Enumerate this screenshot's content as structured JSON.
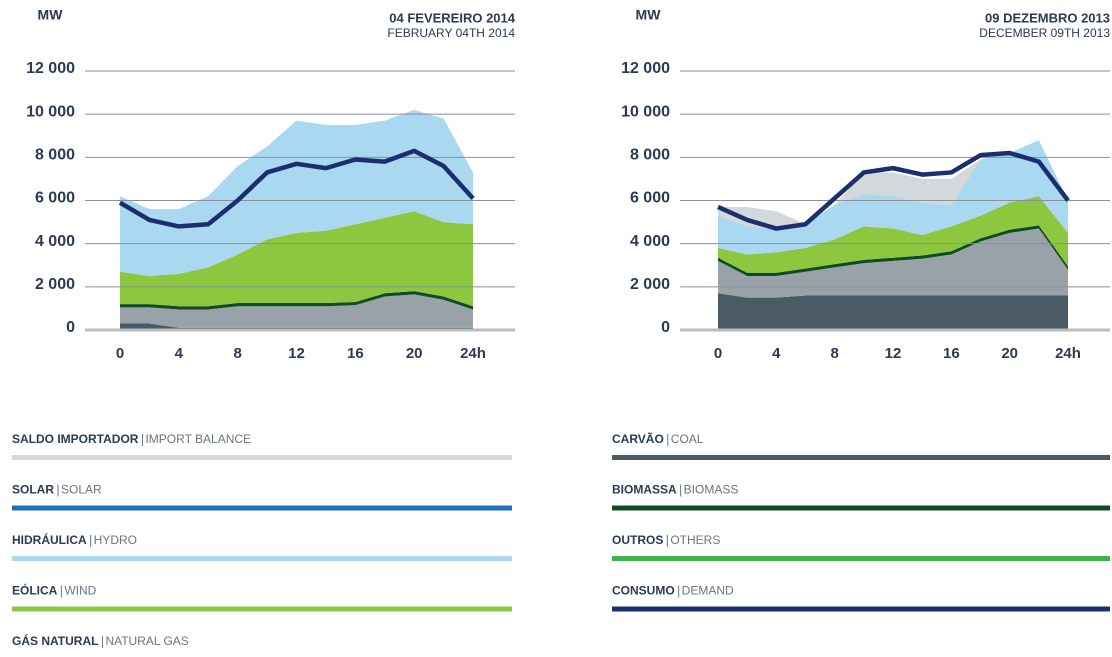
{
  "chart_data": [
    {
      "type": "stacked_area",
      "title": "MW",
      "subtitle": "04 FEVEREIRO 2014",
      "subtitle2": "FEBRUARY 04TH 2014",
      "x": [
        0,
        2,
        4,
        6,
        8,
        10,
        12,
        14,
        16,
        18,
        20,
        22,
        24
      ],
      "xlim": [
        0,
        24
      ],
      "xticks": [
        0,
        4,
        8,
        12,
        16,
        20,
        {
          "value": 24,
          "label": "24h"
        }
      ],
      "ylim": [
        0,
        12000
      ],
      "yticks": [
        0,
        {
          "value": 2000,
          "label": "2 000"
        },
        {
          "value": 4000,
          "label": "4 000"
        },
        {
          "value": 6000,
          "label": "6 000"
        },
        {
          "value": 8000,
          "label": "8 000"
        },
        {
          "value": 10000,
          "label": "10 000"
        },
        {
          "value": 12000,
          "label": "12 000"
        }
      ],
      "grid": true,
      "series": [
        {
          "color": "#4a5b66",
          "values": [
            300,
            300,
            100,
            100,
            100,
            100,
            100,
            100,
            100,
            100,
            100,
            100,
            100
          ]
        },
        {
          "color": "#98a2a8",
          "values": [
            750,
            750,
            850,
            850,
            1000,
            1000,
            1000,
            1000,
            1050,
            1450,
            1550,
            1300,
            850
          ]
        },
        {
          "color": "#0f4d20",
          "values": [
            150,
            150,
            150,
            150,
            150,
            150,
            150,
            150,
            150,
            150,
            150,
            150,
            150
          ]
        },
        {
          "color": "#8dc63f",
          "values": [
            1500,
            1300,
            1500,
            1800,
            2250,
            2950,
            3250,
            3350,
            3600,
            3500,
            3700,
            3450,
            3800
          ]
        },
        {
          "color": "#a9d8f0",
          "values": [
            3500,
            3100,
            3000,
            3300,
            4100,
            4300,
            5200,
            4900,
            4600,
            4500,
            4700,
            4800,
            2400
          ]
        }
      ],
      "demand": {
        "color": "#1b2f6e",
        "values": [
          5900,
          5100,
          4800,
          4900,
          6000,
          7300,
          7700,
          7500,
          7900,
          7800,
          8300,
          7600,
          6100
        ]
      }
    },
    {
      "type": "stacked_area",
      "title": "MW",
      "subtitle": "09 DEZEMBRO 2013",
      "subtitle2": "DECEMBER 09TH 2013",
      "x": [
        0,
        2,
        4,
        6,
        8,
        10,
        12,
        14,
        16,
        18,
        20,
        22,
        24
      ],
      "xlim": [
        0,
        24
      ],
      "xticks": [
        0,
        4,
        8,
        12,
        16,
        20,
        {
          "value": 24,
          "label": "24h"
        }
      ],
      "ylim": [
        0,
        12000
      ],
      "yticks": [
        0,
        {
          "value": 2000,
          "label": "2 000"
        },
        {
          "value": 4000,
          "label": "4 000"
        },
        {
          "value": 6000,
          "label": "6 000"
        },
        {
          "value": 8000,
          "label": "8 000"
        },
        {
          "value": 10000,
          "label": "10 000"
        },
        {
          "value": 12000,
          "label": "12 000"
        }
      ],
      "grid": true,
      "series": [
        {
          "color": "#4a5b66",
          "values": [
            1700,
            1500,
            1500,
            1600,
            1600,
            1600,
            1600,
            1600,
            1600,
            1600,
            1600,
            1600,
            1600
          ]
        },
        {
          "color": "#98a2a8",
          "values": [
            1500,
            1000,
            1000,
            1100,
            1300,
            1500,
            1600,
            1700,
            1900,
            2500,
            2900,
            3100,
            1200
          ]
        },
        {
          "color": "#0f4d20",
          "values": [
            150,
            150,
            150,
            150,
            150,
            150,
            150,
            150,
            150,
            150,
            150,
            150,
            150
          ]
        },
        {
          "color": "#8dc63f",
          "values": [
            450,
            850,
            950,
            950,
            1150,
            1550,
            1350,
            950,
            1150,
            1050,
            1250,
            1350,
            1550
          ]
        },
        {
          "color": "#a9d8f0",
          "values": [
            1500,
            1300,
            1100,
            1100,
            1600,
            1500,
            1500,
            1500,
            1000,
            2600,
            2300,
            2600,
            1500
          ]
        },
        {
          "color": "#d3d8da",
          "values": [
            400,
            900,
            800,
            0,
            0,
            1000,
            1100,
            1100,
            1200,
            0,
            0,
            0,
            0
          ]
        }
      ],
      "demand": {
        "color": "#1b2f6e",
        "values": [
          5700,
          5100,
          4700,
          4900,
          6100,
          7300,
          7500,
          7200,
          7300,
          8100,
          8200,
          7800,
          6000
        ]
      }
    }
  ],
  "legend": [
    {
      "name": "SALDO IMPORTADOR",
      "en": "IMPORT BALANCE",
      "color": "#d3d8da"
    },
    {
      "name": "SOLAR",
      "en": "SOLAR",
      "color": "#1f6fc1"
    },
    {
      "name": "HIDRÁULICA",
      "en": "HYDRO",
      "color": "#a9d8f0"
    },
    {
      "name": "EÓLICA",
      "en": "WIND",
      "color": "#8dc63f"
    },
    {
      "name": "GÁS NATURAL",
      "en": "NATURAL GAS",
      "color": "#98a2a8"
    },
    {
      "name": "CARVÃO",
      "en": "COAL",
      "color": "#4a5b66"
    },
    {
      "name": "BIOMASSA",
      "en": "BIOMASS",
      "color": "#0f4d20"
    },
    {
      "name": "OUTROS",
      "en": "OTHERS",
      "color": "#3db54a"
    },
    {
      "name": "CONSUMO",
      "en": "DEMAND",
      "color": "#1b2f6e"
    }
  ]
}
